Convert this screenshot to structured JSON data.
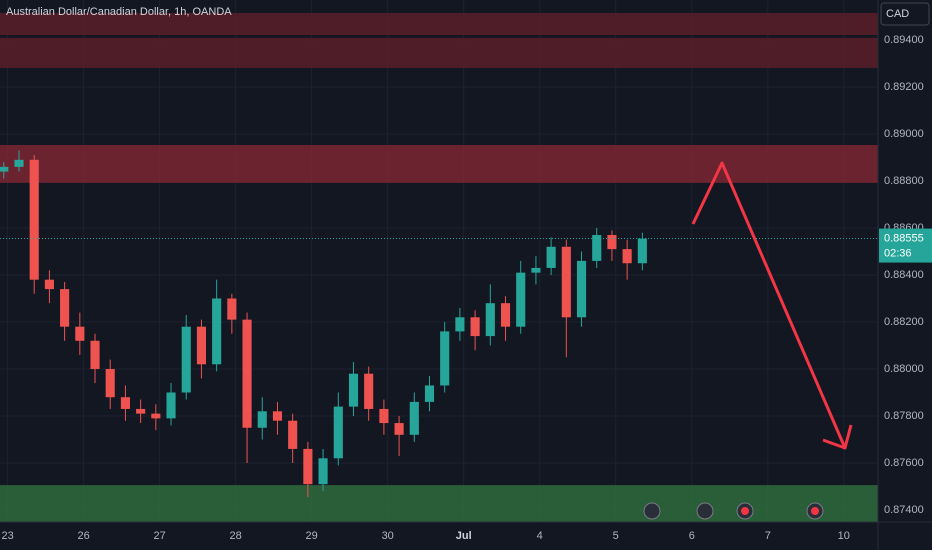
{
  "chart_data": {
    "type": "candlestick",
    "title": "Australian Dollar/Canadian Dollar, 1h, OANDA",
    "currency": "CAD",
    "x": [
      -0.05,
      0.15,
      0.35,
      0.55,
      0.75,
      0.95,
      1.15,
      1.35,
      1.55,
      1.75,
      1.95,
      2.15,
      2.35,
      2.55,
      2.75,
      2.95,
      3.15,
      3.35,
      3.55,
      3.75,
      3.95,
      4.15,
      4.35,
      4.55,
      4.75,
      4.95,
      5.15,
      5.35,
      5.55,
      5.75,
      5.95,
      6.15,
      6.35,
      6.55,
      6.75,
      6.95,
      7.15,
      7.35,
      7.55,
      7.75,
      7.95,
      8.15,
      8.35
    ],
    "open": [
      0.8884,
      0.8886,
      0.8889,
      0.8838,
      0.8834,
      0.8818,
      0.8812,
      0.88,
      0.8788,
      0.8783,
      0.8781,
      0.8779,
      0.879,
      0.8818,
      0.8802,
      0.883,
      0.8821,
      0.8775,
      0.8782,
      0.8778,
      0.8766,
      0.8751,
      0.8762,
      0.8784,
      0.8798,
      0.8783,
      0.8777,
      0.8772,
      0.8786,
      0.8793,
      0.8816,
      0.8822,
      0.8814,
      0.8828,
      0.8818,
      0.8841,
      0.8843,
      0.8852,
      0.8822,
      0.8846,
      0.8857,
      0.8851,
      0.8845
    ],
    "high": [
      0.8888,
      0.8893,
      0.8891,
      0.8842,
      0.8837,
      0.8824,
      0.8815,
      0.8804,
      0.8793,
      0.8787,
      0.8785,
      0.8794,
      0.8823,
      0.8821,
      0.8838,
      0.8832,
      0.8824,
      0.8788,
      0.8786,
      0.8781,
      0.8769,
      0.8766,
      0.879,
      0.8803,
      0.8801,
      0.8787,
      0.878,
      0.879,
      0.8797,
      0.882,
      0.8826,
      0.8825,
      0.8836,
      0.8831,
      0.8846,
      0.8848,
      0.8856,
      0.8855,
      0.885,
      0.886,
      0.8859,
      0.8855,
      0.8858
    ],
    "low": [
      0.8881,
      0.8884,
      0.8832,
      0.8828,
      0.8812,
      0.8806,
      0.8794,
      0.8783,
      0.8778,
      0.8777,
      0.8774,
      0.8776,
      0.8787,
      0.8796,
      0.8799,
      0.8815,
      0.876,
      0.877,
      0.8772,
      0.876,
      0.87455,
      0.8748,
      0.8759,
      0.878,
      0.8778,
      0.8772,
      0.8763,
      0.8769,
      0.8782,
      0.879,
      0.8812,
      0.8808,
      0.881,
      0.8812,
      0.8815,
      0.8836,
      0.884,
      0.8805,
      0.8818,
      0.8843,
      0.8846,
      0.8838,
      0.8842
    ],
    "close": [
      0.8886,
      0.8889,
      0.8838,
      0.8834,
      0.8818,
      0.8812,
      0.88,
      0.8788,
      0.8783,
      0.8781,
      0.8779,
      0.879,
      0.8818,
      0.8802,
      0.883,
      0.8821,
      0.8775,
      0.8782,
      0.8778,
      0.8766,
      0.8751,
      0.8762,
      0.8784,
      0.8798,
      0.8783,
      0.8777,
      0.8772,
      0.8786,
      0.8793,
      0.8816,
      0.8822,
      0.8814,
      0.8828,
      0.8818,
      0.8841,
      0.8843,
      0.8852,
      0.8822,
      0.8846,
      0.8857,
      0.8851,
      0.8845,
      0.88555
    ],
    "up_color": "#26a69a",
    "down_color": "#ef5350",
    "xlim": [
      -0.1,
      11.45
    ],
    "xticks": [
      {
        "value": 0,
        "label": "23"
      },
      {
        "value": 1,
        "label": "26"
      },
      {
        "value": 2,
        "label": "27"
      },
      {
        "value": 3,
        "label": "28"
      },
      {
        "value": 4,
        "label": "29"
      },
      {
        "value": 5,
        "label": "30"
      },
      {
        "value": 6,
        "label": "Jul"
      },
      {
        "value": 7,
        "label": "4"
      },
      {
        "value": 8,
        "label": "5"
      },
      {
        "value": 9,
        "label": "6"
      },
      {
        "value": 10,
        "label": "7"
      },
      {
        "value": 11,
        "label": "10"
      }
    ],
    "ylim": [
      0.87349,
      0.8957
    ],
    "yticks": [
      {
        "value": 0.874,
        "label": "0.87400"
      },
      {
        "value": 0.876,
        "label": "0.87600"
      },
      {
        "value": 0.878,
        "label": "0.87800"
      },
      {
        "value": 0.88,
        "label": "0.88000"
      },
      {
        "value": 0.882,
        "label": "0.88200"
      },
      {
        "value": 0.884,
        "label": "0.88400"
      },
      {
        "value": 0.886,
        "label": "0.88600"
      },
      {
        "value": 0.888,
        "label": "0.88800"
      },
      {
        "value": 0.89,
        "label": "0.89000"
      },
      {
        "value": 0.892,
        "label": "0.89200"
      },
      {
        "value": 0.894,
        "label": "0.89400"
      }
    ],
    "grid": true,
    "last_price": 0.88555,
    "countdown": "02:36",
    "zones": [
      {
        "low": 0.89421,
        "high": 0.89515,
        "color": "#5a1f29"
      },
      {
        "low": 0.89281,
        "high": 0.89409,
        "color": "#5a1f29"
      },
      {
        "low": 0.88792,
        "high": 0.88953,
        "color": "#7c2633"
      },
      {
        "low": 0.87349,
        "high": 0.87506,
        "color": "#2f6b3c"
      }
    ]
  }
}
